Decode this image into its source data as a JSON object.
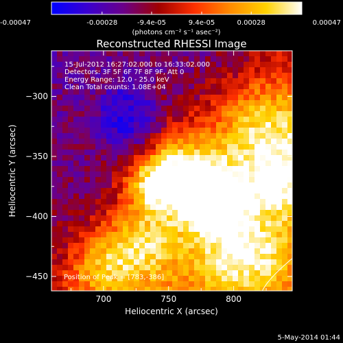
{
  "chart_data": {
    "type": "heatmap",
    "title": "Reconstructed RHESSI Image",
    "xlabel": "Heliocentric X (arcsec)",
    "ylabel": "Heliocentric Y (arcsec)",
    "xlim": [
      660,
      845
    ],
    "ylim": [
      -462,
      -262
    ],
    "x_ticks": [
      700,
      750,
      800
    ],
    "y_ticks": [
      -300,
      -350,
      -400,
      -450
    ],
    "colorbar": {
      "label": "(photons cm⁻² s⁻¹ asec⁻²)",
      "range": [
        -0.00047,
        0.00047
      ],
      "tick_labels_bottom": [
        "-0.00047",
        "-0.00028",
        "0.00028",
        "0.00047"
      ],
      "tick_values_bottom": [
        -0.00047,
        -0.00028,
        0.00028,
        0.00047
      ],
      "tick_labels_top": [
        "-9.4e-05",
        "9.4e-05"
      ],
      "tick_values_top": [
        -9.4e-05,
        9.4e-05
      ],
      "colors": [
        "#0000ff",
        "#3a00d0",
        "#6a008a",
        "#a00000",
        "#ff3000",
        "#ff8c00",
        "#ffd200",
        "#ffffff"
      ]
    },
    "annotations": [
      "15-Jul-2012 16:27:02.000 to 16:33:02.000",
      "Detectors: 3F 5F 6F 7F 8F 9F, Att 0",
      "Energy Range: 12.0 - 25.0 keV",
      "Clean    Total counts: 1.08E+04"
    ],
    "peak_label": "Position of Peak = [783,-386]",
    "peak_position": [
      783,
      -386
    ],
    "limb_arc": [
      [
        845,
        -435
      ],
      [
        822,
        -462
      ]
    ]
  },
  "footer": {
    "date": "5-May-2014 01:44"
  }
}
